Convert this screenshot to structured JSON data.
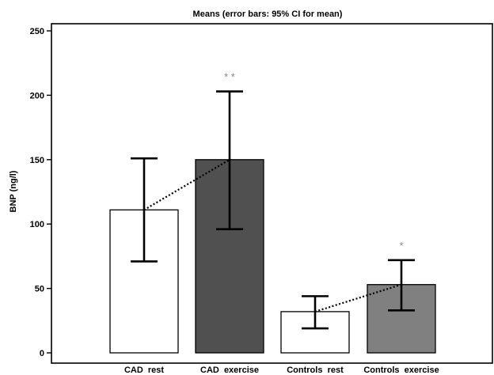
{
  "chart_data": {
    "type": "bar",
    "title": "Means  (error bars: 95% CI for mean)",
    "xlabel": "",
    "ylabel": "BNP (ng/l)",
    "ylim": [
      0,
      250
    ],
    "yticks": [
      0,
      50,
      100,
      150,
      200,
      250
    ],
    "grid": false,
    "categories": [
      "CAD  rest",
      "CAD  exercise",
      "Controls  rest",
      "Controls  exercise"
    ],
    "values": [
      111,
      150,
      32,
      53
    ],
    "ci_lower": [
      71,
      96,
      19,
      33
    ],
    "ci_upper": [
      151,
      203,
      44,
      72
    ],
    "bar_colors": [
      "#ffffff",
      "#505050",
      "#ffffff",
      "#808080"
    ],
    "annotations": [
      "",
      "* *",
      "",
      "*"
    ],
    "dotted_links": [
      [
        0,
        1
      ],
      [
        2,
        3
      ]
    ]
  }
}
